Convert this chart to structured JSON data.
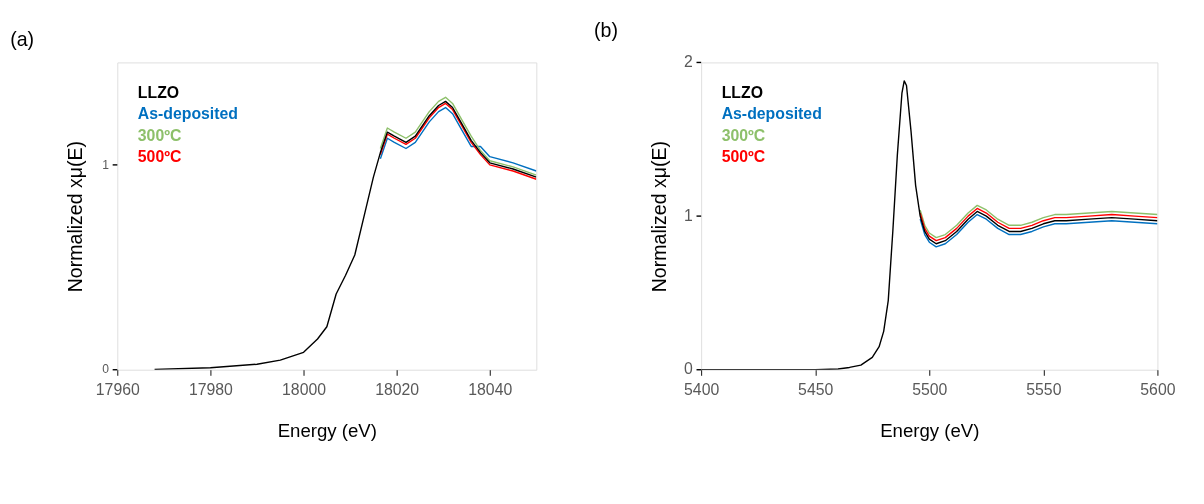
{
  "chart_data": [
    {
      "type": "line",
      "title": "(a)",
      "xlabel": "Energy (eV)",
      "ylabel": "Normalized xμ(E)",
      "xlim": [
        17960,
        18050
      ],
      "xticks": [
        17960,
        17980,
        18000,
        18020,
        18040
      ],
      "ylim": [
        0,
        1.5
      ],
      "yticks": [
        0,
        1
      ],
      "grid": false,
      "legend": "top left",
      "line_style": "solid",
      "marker": "none",
      "x": [
        17968,
        17980,
        17990,
        17995,
        18000,
        18003,
        18005,
        18007,
        18009,
        18011,
        18013,
        18015,
        18016.5,
        18018,
        18019.5,
        18022,
        18024,
        18027,
        18029,
        18030.5,
        18032,
        18034,
        18036,
        18038,
        18040,
        18045,
        18050
      ],
      "series": [
        {
          "name": "As-deposited",
          "color": "#0070c0",
          "values": [
            null,
            null,
            null,
            null,
            null,
            null,
            null,
            null,
            null,
            null,
            null,
            null,
            1.03,
            1.13,
            1.11,
            1.08,
            1.11,
            1.21,
            1.26,
            1.28,
            1.25,
            1.17,
            1.09,
            1.09,
            1.04,
            1.01,
            0.97
          ]
        },
        {
          "name": "300ºC",
          "color": "#8dc06a",
          "values": [
            null,
            null,
            null,
            null,
            null,
            null,
            null,
            null,
            null,
            null,
            null,
            null,
            1.08,
            1.18,
            1.16,
            1.13,
            1.16,
            1.26,
            1.31,
            1.33,
            1.3,
            1.22,
            1.14,
            1.07,
            1.02,
            0.99,
            0.95
          ]
        },
        {
          "name": "500ºC",
          "color": "#ff0000",
          "values": [
            null,
            null,
            null,
            null,
            null,
            null,
            null,
            null,
            null,
            null,
            null,
            null,
            1.05,
            1.15,
            1.13,
            1.1,
            1.13,
            1.23,
            1.28,
            1.3,
            1.27,
            1.19,
            1.11,
            1.05,
            1.0,
            0.97,
            0.93
          ]
        },
        {
          "name": "LLZO",
          "color": "#000000",
          "values": [
            0.002,
            0.01,
            0.027,
            0.047,
            0.085,
            0.15,
            0.21,
            0.37,
            0.46,
            0.56,
            0.75,
            0.94,
            1.06,
            1.16,
            1.14,
            1.11,
            1.14,
            1.24,
            1.29,
            1.31,
            1.28,
            1.2,
            1.12,
            1.06,
            1.01,
            0.98,
            0.94
          ]
        }
      ]
    },
    {
      "type": "line",
      "title": "(b)",
      "xlabel": "Energy (eV)",
      "ylabel": "Normalized xμ(E)",
      "xlim": [
        5400,
        5600
      ],
      "xticks": [
        5400,
        5450,
        5500,
        5550,
        5600
      ],
      "ylim": [
        0,
        2
      ],
      "yticks": [
        0,
        1,
        2
      ],
      "grid": false,
      "legend": "top left",
      "line_style": "solid",
      "marker": "none",
      "x": [
        5400,
        5450,
        5460,
        5465,
        5470,
        5475,
        5478,
        5480,
        5482,
        5484,
        5486,
        5488,
        5489,
        5490,
        5492,
        5494,
        5496,
        5498,
        5500,
        5503,
        5507,
        5512,
        5517,
        5521,
        5525,
        5530,
        5535,
        5540,
        5545,
        5550,
        5555,
        5560,
        5570,
        5580,
        5590,
        5600
      ],
      "series": [
        {
          "name": "As-deposited",
          "color": "#0070c0",
          "values": [
            null,
            null,
            null,
            null,
            null,
            null,
            null,
            null,
            null,
            null,
            null,
            null,
            null,
            null,
            null,
            null,
            0.98,
            0.88,
            0.83,
            0.8,
            0.82,
            0.88,
            0.96,
            1.01,
            0.98,
            0.92,
            0.88,
            0.88,
            0.9,
            0.93,
            0.95,
            0.95,
            0.96,
            0.97,
            0.96,
            0.95
          ]
        },
        {
          "name": "300ºC",
          "color": "#8dc06a",
          "values": [
            null,
            null,
            null,
            null,
            null,
            null,
            null,
            null,
            null,
            null,
            null,
            null,
            null,
            null,
            null,
            null,
            1.04,
            0.94,
            0.89,
            0.86,
            0.88,
            0.94,
            1.02,
            1.07,
            1.04,
            0.98,
            0.94,
            0.94,
            0.96,
            0.99,
            1.01,
            1.01,
            1.02,
            1.03,
            1.02,
            1.01
          ]
        },
        {
          "name": "500ºC",
          "color": "#ff0000",
          "values": [
            null,
            null,
            null,
            null,
            null,
            null,
            null,
            null,
            null,
            null,
            null,
            null,
            null,
            null,
            null,
            null,
            1.02,
            0.92,
            0.87,
            0.84,
            0.86,
            0.92,
            1.0,
            1.05,
            1.02,
            0.96,
            0.92,
            0.92,
            0.94,
            0.97,
            0.99,
            0.99,
            1.0,
            1.01,
            1.0,
            0.99
          ]
        },
        {
          "name": "LLZO",
          "color": "#000000",
          "values": [
            0,
            0,
            0.005,
            0.015,
            0.03,
            0.08,
            0.15,
            0.25,
            0.45,
            0.9,
            1.4,
            1.8,
            1.88,
            1.85,
            1.55,
            1.2,
            1.0,
            0.9,
            0.85,
            0.82,
            0.84,
            0.9,
            0.98,
            1.03,
            1.0,
            0.94,
            0.9,
            0.9,
            0.92,
            0.95,
            0.97,
            0.97,
            0.98,
            0.99,
            0.98,
            0.97
          ]
        }
      ]
    }
  ]
}
